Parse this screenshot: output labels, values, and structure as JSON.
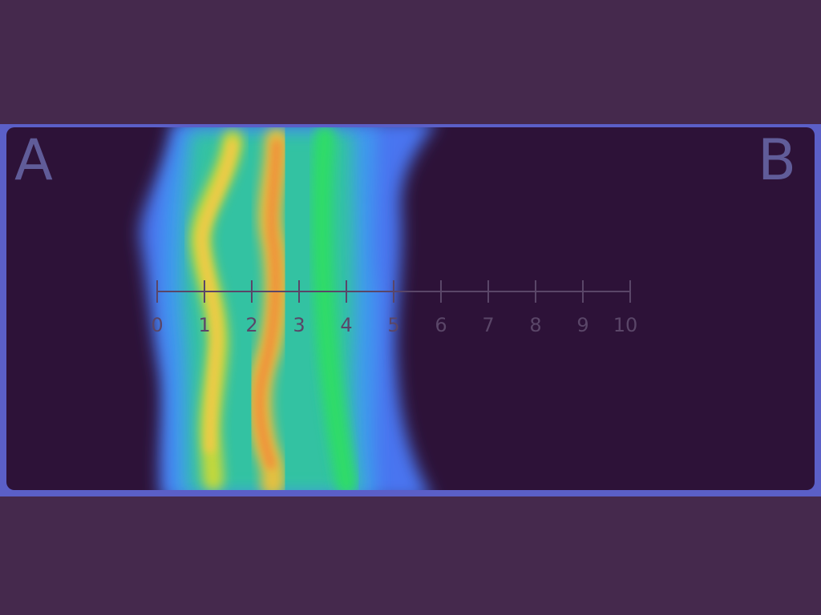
{
  "labels": {
    "left": "A",
    "right": "B"
  },
  "scale": {
    "ticks": [
      "0",
      "1",
      "2",
      "3",
      "4",
      "5",
      "6",
      "7",
      "8",
      "9",
      "10"
    ]
  },
  "colors": {
    "frame": "#45294d",
    "panel_border": "#5b5fc7",
    "panel_fill": "#2d1238",
    "band_blue": "#4a7cff",
    "band_teal": "#2fc3a0",
    "band_green": "#2ed37a",
    "band_yellow": "#d8d23a",
    "band_orange": "#f08a3a"
  }
}
